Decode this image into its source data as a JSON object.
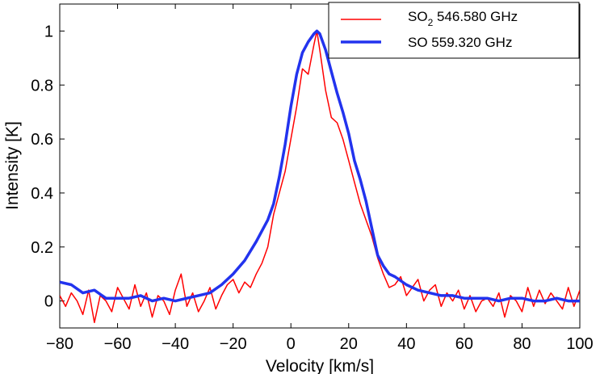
{
  "chart_data": {
    "type": "line",
    "title": "",
    "xlabel": "Velocity [km/s]",
    "ylabel": "Intensity [K]",
    "xlim": [
      -80,
      100
    ],
    "ylim": [
      -0.1,
      1.1
    ],
    "xticks": [
      -80,
      -60,
      -40,
      -20,
      0,
      20,
      40,
      60,
      80,
      100
    ],
    "xtick_labels": [
      "−80",
      "−60",
      "−40",
      "−20",
      "0",
      "20",
      "40",
      "60",
      "80",
      "100"
    ],
    "yticks": [
      0,
      0.2,
      0.4,
      0.6,
      0.8,
      1
    ],
    "ytick_labels": [
      "0",
      "0.2",
      "0.4",
      "0.6",
      "0.8",
      "1"
    ],
    "grid": false,
    "legend_position": "top-right",
    "series": [
      {
        "name": "SO2 546.580 GHz",
        "legend_main": "SO",
        "legend_sub": "2",
        "legend_rest": " 546.580 GHz",
        "color": "#ff0000",
        "x": [
          -80,
          -78,
          -76,
          -74,
          -72,
          -70,
          -68,
          -66,
          -64,
          -62,
          -60,
          -58,
          -56,
          -54,
          -52,
          -50,
          -48,
          -46,
          -44,
          -42,
          -40,
          -38,
          -36,
          -34,
          -32,
          -30,
          -28,
          -26,
          -24,
          -22,
          -20,
          -18,
          -16,
          -14,
          -12,
          -10,
          -8,
          -6,
          -4,
          -2,
          0,
          2,
          4,
          6,
          8,
          9,
          10,
          12,
          14,
          16,
          18,
          20,
          22,
          24,
          26,
          28,
          30,
          32,
          34,
          36,
          38,
          40,
          42,
          44,
          46,
          48,
          50,
          52,
          54,
          56,
          58,
          60,
          62,
          64,
          66,
          68,
          70,
          72,
          74,
          76,
          78,
          80,
          82,
          84,
          86,
          88,
          90,
          92,
          94,
          96,
          98,
          100
        ],
        "y": [
          0.02,
          -0.02,
          0.03,
          0.0,
          -0.05,
          0.04,
          -0.08,
          0.02,
          0.0,
          -0.04,
          0.05,
          0.01,
          -0.03,
          0.06,
          -0.02,
          0.03,
          -0.06,
          0.02,
          0.0,
          -0.05,
          0.04,
          0.1,
          -0.02,
          0.03,
          -0.04,
          0.0,
          0.05,
          -0.03,
          0.02,
          0.06,
          0.08,
          0.03,
          0.07,
          0.05,
          0.1,
          0.14,
          0.2,
          0.32,
          0.4,
          0.48,
          0.6,
          0.72,
          0.86,
          0.84,
          0.95,
          1.0,
          0.93,
          0.78,
          0.68,
          0.66,
          0.6,
          0.52,
          0.44,
          0.36,
          0.3,
          0.24,
          0.16,
          0.1,
          0.05,
          0.06,
          0.09,
          0.02,
          0.05,
          0.08,
          0.0,
          0.04,
          0.06,
          -0.02,
          0.03,
          0.0,
          0.04,
          -0.03,
          0.02,
          -0.04,
          0.0,
          0.01,
          -0.02,
          0.03,
          -0.06,
          0.02,
          0.0,
          -0.04,
          0.05,
          -0.02,
          0.04,
          -0.01,
          0.03,
          0.0,
          -0.03,
          0.05,
          -0.02,
          0.04
        ]
      },
      {
        "name": "SO 559.320 GHz",
        "legend_main": "SO 559.320 GHz",
        "legend_sub": "",
        "legend_rest": "",
        "color": "#2233ee",
        "x": [
          -80,
          -76,
          -72,
          -68,
          -64,
          -60,
          -56,
          -52,
          -48,
          -44,
          -40,
          -36,
          -32,
          -28,
          -24,
          -20,
          -16,
          -12,
          -8,
          -6,
          -4,
          -2,
          0,
          2,
          4,
          6,
          8,
          9,
          10,
          12,
          14,
          16,
          18,
          20,
          22,
          24,
          26,
          28,
          30,
          32,
          34,
          36,
          40,
          44,
          48,
          52,
          56,
          60,
          64,
          68,
          72,
          76,
          80,
          84,
          88,
          92,
          96,
          100
        ],
        "y": [
          0.07,
          0.06,
          0.03,
          0.04,
          0.01,
          0.01,
          0.01,
          0.02,
          0.0,
          0.01,
          0.0,
          0.01,
          0.02,
          0.03,
          0.06,
          0.1,
          0.15,
          0.22,
          0.3,
          0.36,
          0.46,
          0.58,
          0.72,
          0.84,
          0.92,
          0.96,
          0.99,
          1.0,
          0.99,
          0.93,
          0.85,
          0.77,
          0.7,
          0.62,
          0.52,
          0.45,
          0.37,
          0.27,
          0.17,
          0.13,
          0.1,
          0.09,
          0.06,
          0.04,
          0.03,
          0.02,
          0.02,
          0.01,
          0.01,
          0.01,
          0.0,
          0.01,
          0.01,
          0.0,
          0.0,
          0.01,
          0.0,
          0.0
        ]
      }
    ]
  }
}
